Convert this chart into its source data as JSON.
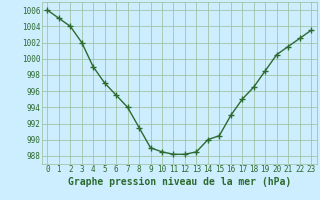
{
  "x": [
    0,
    1,
    2,
    3,
    4,
    5,
    6,
    7,
    8,
    9,
    10,
    11,
    12,
    13,
    14,
    15,
    16,
    17,
    18,
    19,
    20,
    21,
    22,
    23
  ],
  "y": [
    1006,
    1005,
    1004,
    1002,
    999,
    997,
    995.5,
    994,
    991.5,
    989,
    988.5,
    988.2,
    988.2,
    988.5,
    990,
    990.5,
    993,
    995,
    996.5,
    998.5,
    1000.5,
    1001.5,
    1002.5,
    1003.5
  ],
  "line_color": "#2d6a2d",
  "marker": "+",
  "marker_size": 4,
  "marker_lw": 1.0,
  "line_width": 1.0,
  "bg_color": "#cceeff",
  "grid_color": "#99bb99",
  "xlabel": "Graphe pression niveau de la mer (hPa)",
  "xlabel_fontsize": 7,
  "xlabel_fontweight": "bold",
  "xlabel_color": "#2d6a2d",
  "ytick_values": [
    988,
    990,
    992,
    994,
    996,
    998,
    1000,
    1002,
    1004,
    1006
  ],
  "xtick_values": [
    0,
    1,
    2,
    3,
    4,
    5,
    6,
    7,
    8,
    9,
    10,
    11,
    12,
    13,
    14,
    15,
    16,
    17,
    18,
    19,
    20,
    21,
    22,
    23
  ],
  "ylim": [
    987,
    1007
  ],
  "xlim": [
    -0.5,
    23.5
  ],
  "tick_color": "#2d6a2d",
  "tick_fontsize": 5.5
}
